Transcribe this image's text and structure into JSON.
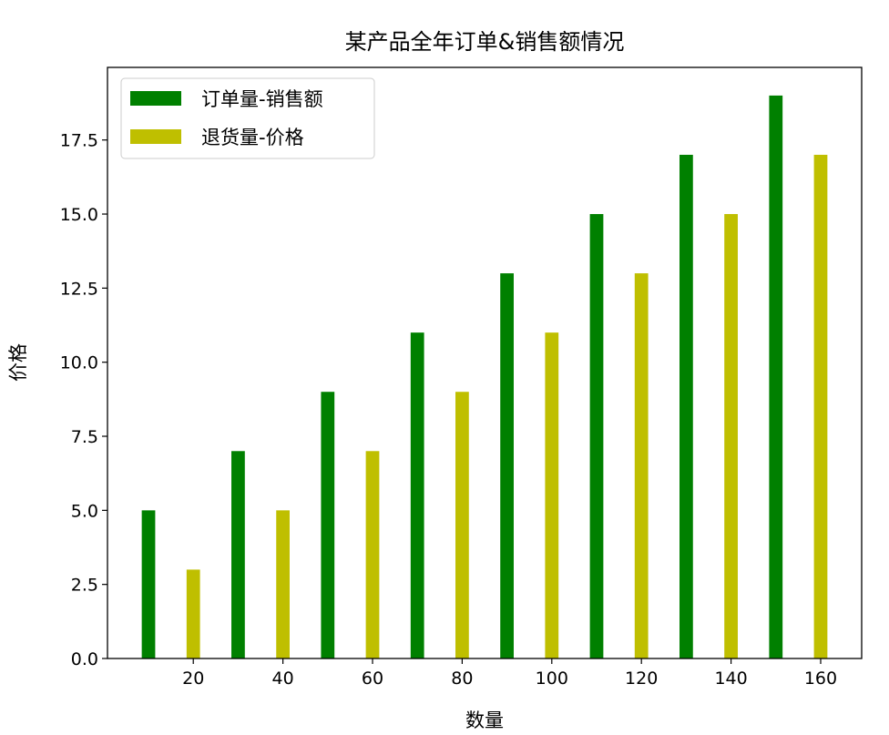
{
  "chart_data": {
    "type": "bar",
    "title": "某产品全年订单&销售额情况",
    "xlabel": "数量",
    "ylabel": "价格",
    "xlim": [
      0.85,
      169.15
    ],
    "ylim": [
      0,
      19.95
    ],
    "xticks": [
      20,
      40,
      60,
      80,
      100,
      120,
      140,
      160
    ],
    "xtick_labels": [
      "20",
      "40",
      "60",
      "80",
      "100",
      "120",
      "140",
      "160"
    ],
    "yticks": [
      0,
      2.5,
      5,
      7.5,
      10,
      12.5,
      15,
      17.5
    ],
    "ytick_labels": [
      "0.0",
      "2.5",
      "5.0",
      "7.5",
      "10.0",
      "12.5",
      "15.0",
      "17.5"
    ],
    "bar_width": 3,
    "grid": false,
    "legend_position": "top-left",
    "series": [
      {
        "name": "订单量-销售额",
        "color": "#008000",
        "x": [
          10,
          30,
          50,
          70,
          90,
          110,
          130,
          150
        ],
        "values": [
          5,
          7,
          9,
          11,
          13,
          15,
          17,
          19
        ]
      },
      {
        "name": "退货量-价格",
        "color": "#bfbf00",
        "x": [
          20,
          40,
          60,
          80,
          100,
          120,
          140,
          160
        ],
        "values": [
          3,
          5,
          7,
          9,
          11,
          13,
          15,
          17
        ]
      }
    ]
  }
}
